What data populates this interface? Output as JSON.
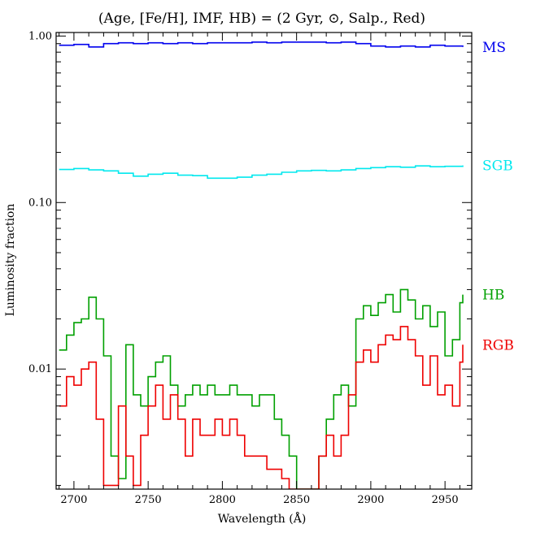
{
  "chart_data": {
    "type": "line",
    "title": "(Age, [Fe/H], IMF, HB) = (2 Gyr, ⊙, Salp., Red)",
    "xlabel": "Wavelength (Å)",
    "ylabel": "Luminosity fraction",
    "xlim": [
      2688,
      2968
    ],
    "ylim": [
      0.0019,
      1.05
    ],
    "yscale": "log",
    "xticks": [
      2700,
      2750,
      2800,
      2850,
      2900,
      2950
    ],
    "xtick_labels": [
      "2700",
      "2750",
      "2800",
      "2850",
      "2900",
      "2950"
    ],
    "yticks": [
      0.01,
      0.1,
      1.0
    ],
    "ytick_labels": [
      "0.01",
      "0.10",
      "1.00"
    ],
    "grid": false,
    "legend": "labels at right end of each series",
    "series": [
      {
        "name": "MS",
        "color": "#0000ee",
        "x": [
          2690,
          2700,
          2710,
          2720,
          2730,
          2740,
          2750,
          2760,
          2770,
          2780,
          2790,
          2800,
          2810,
          2820,
          2830,
          2840,
          2850,
          2860,
          2870,
          2880,
          2890,
          2900,
          2910,
          2920,
          2930,
          2940,
          2950,
          2962
        ],
        "values": [
          0.88,
          0.89,
          0.86,
          0.9,
          0.91,
          0.9,
          0.91,
          0.9,
          0.91,
          0.9,
          0.91,
          0.91,
          0.91,
          0.92,
          0.91,
          0.92,
          0.92,
          0.92,
          0.91,
          0.92,
          0.9,
          0.87,
          0.86,
          0.87,
          0.86,
          0.88,
          0.87,
          0.86
        ]
      },
      {
        "name": "SGB",
        "color": "#00e8ee",
        "x": [
          2690,
          2700,
          2710,
          2720,
          2730,
          2740,
          2750,
          2760,
          2770,
          2780,
          2790,
          2800,
          2810,
          2820,
          2830,
          2840,
          2850,
          2860,
          2870,
          2880,
          2890,
          2900,
          2910,
          2920,
          2930,
          2940,
          2950,
          2962
        ],
        "values": [
          0.158,
          0.16,
          0.157,
          0.155,
          0.15,
          0.144,
          0.148,
          0.15,
          0.146,
          0.145,
          0.14,
          0.14,
          0.142,
          0.146,
          0.148,
          0.152,
          0.155,
          0.156,
          0.155,
          0.157,
          0.16,
          0.162,
          0.164,
          0.163,
          0.166,
          0.164,
          0.165,
          0.167
        ]
      },
      {
        "name": "HB",
        "color": "#00a000",
        "x": [
          2690,
          2695,
          2700,
          2705,
          2710,
          2715,
          2720,
          2725,
          2730,
          2735,
          2740,
          2745,
          2750,
          2755,
          2760,
          2765,
          2770,
          2775,
          2780,
          2785,
          2790,
          2795,
          2800,
          2805,
          2810,
          2815,
          2820,
          2825,
          2830,
          2835,
          2840,
          2845,
          2850,
          2855,
          2860,
          2865,
          2870,
          2875,
          2880,
          2885,
          2890,
          2895,
          2900,
          2905,
          2910,
          2915,
          2920,
          2925,
          2930,
          2935,
          2940,
          2945,
          2950,
          2955,
          2960,
          2962
        ],
        "values": [
          0.013,
          0.016,
          0.019,
          0.02,
          0.027,
          0.02,
          0.012,
          0.003,
          0.0022,
          0.014,
          0.007,
          0.006,
          0.009,
          0.011,
          0.012,
          0.008,
          0.006,
          0.007,
          0.008,
          0.007,
          0.008,
          0.007,
          0.007,
          0.008,
          0.007,
          0.007,
          0.006,
          0.007,
          0.007,
          0.005,
          0.004,
          0.003,
          0.0019,
          0.0019,
          0.0019,
          0.003,
          0.005,
          0.007,
          0.008,
          0.006,
          0.02,
          0.024,
          0.021,
          0.025,
          0.028,
          0.022,
          0.03,
          0.026,
          0.02,
          0.024,
          0.018,
          0.022,
          0.012,
          0.015,
          0.025,
          0.028
        ]
      },
      {
        "name": "RGB",
        "color": "#ee0000",
        "x": [
          2690,
          2695,
          2700,
          2705,
          2710,
          2715,
          2720,
          2725,
          2730,
          2735,
          2740,
          2745,
          2750,
          2755,
          2760,
          2765,
          2770,
          2775,
          2780,
          2785,
          2790,
          2795,
          2800,
          2805,
          2810,
          2815,
          2820,
          2825,
          2830,
          2835,
          2840,
          2845,
          2850,
          2855,
          2860,
          2865,
          2870,
          2875,
          2880,
          2885,
          2890,
          2895,
          2900,
          2905,
          2910,
          2915,
          2920,
          2925,
          2930,
          2935,
          2940,
          2945,
          2950,
          2955,
          2960,
          2962
        ],
        "values": [
          0.006,
          0.009,
          0.008,
          0.01,
          0.011,
          0.005,
          0.002,
          0.002,
          0.006,
          0.003,
          0.002,
          0.004,
          0.006,
          0.008,
          0.005,
          0.007,
          0.005,
          0.003,
          0.005,
          0.004,
          0.004,
          0.005,
          0.004,
          0.005,
          0.004,
          0.003,
          0.003,
          0.003,
          0.0025,
          0.0025,
          0.0022,
          0.0019,
          0.0019,
          0.0019,
          0.0019,
          0.003,
          0.004,
          0.003,
          0.004,
          0.007,
          0.011,
          0.013,
          0.011,
          0.014,
          0.016,
          0.015,
          0.018,
          0.015,
          0.012,
          0.008,
          0.012,
          0.007,
          0.008,
          0.006,
          0.011,
          0.014
        ]
      }
    ]
  }
}
